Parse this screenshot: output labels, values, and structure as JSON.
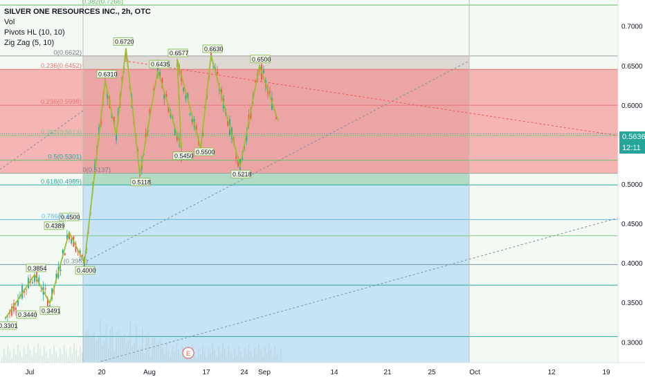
{
  "legend": {
    "title": "SILVER ONE RESOURCES INC., 2h, OTC",
    "indicators": [
      "Vol",
      "Pivots HL (10, 10)",
      "Zig Zag (5, 10)"
    ]
  },
  "price_label": {
    "value": "0.5636",
    "countdown": "12:11"
  },
  "event_marker": "E",
  "colors": {
    "zigzag": "#9bbf2b",
    "up_candle": "#26a69a",
    "down_candle": "#ef5350",
    "fib_red_zone": "#f77c80",
    "fib_blue_zone": "#90caf9",
    "fib_green_zone": "#c8e6c9",
    "current_price": "#26a69a"
  },
  "chart_data": {
    "type": "candlestick",
    "title": "SILVER ONE RESOURCES INC., 2h, OTC",
    "x_tick_labels": [
      "Jul",
      "20",
      "Aug",
      "17",
      "24",
      "Sep",
      "14",
      "21",
      "25",
      "Oct",
      "12",
      "19"
    ],
    "y_tick_labels": [
      "0.7000",
      "0.6500",
      "0.6000",
      "0.5500",
      "0.5000",
      "0.4500",
      "0.4000",
      "0.3500",
      "0.3000"
    ],
    "y_range": [
      0.274,
      0.733
    ],
    "current_price": 0.5636,
    "fib_retracement_upper": [
      {
        "label": "0(0.6622)",
        "value": 0.6622
      },
      {
        "label": "0.236(0.6452)",
        "value": 0.6452
      },
      {
        "label": "0.236(0.5998)",
        "value": 0.5998
      },
      {
        "label": "0.382(0.5613)",
        "value": 0.5613
      },
      {
        "label": "0.5(0.5301)",
        "value": 0.5301
      },
      {
        "label": "0(0.5137)",
        "value": 0.5137
      }
    ],
    "fib_retracement_lower": [
      {
        "label": "0.382(0.7266)",
        "value": 0.7266
      },
      {
        "label": "0.618(0.4989)",
        "value": 0.4989
      },
      {
        "label": "0.786(0.4",
        "value": 0.455
      },
      {
        "label": "(0.3981)",
        "value": 0.3981
      }
    ],
    "pivot_labels": [
      {
        "label": "0.3301",
        "value": 0.3301
      },
      {
        "label": "0.3440",
        "value": 0.344
      },
      {
        "label": "0.3854",
        "value": 0.3854
      },
      {
        "label": "0.3491",
        "value": 0.3491
      },
      {
        "label": "0.4389",
        "value": 0.4389
      },
      {
        "label": "0.4500",
        "value": 0.45
      },
      {
        "label": "0.4000",
        "value": 0.4
      },
      {
        "label": "0.6310",
        "value": 0.631
      },
      {
        "label": "0.6720",
        "value": 0.672
      },
      {
        "label": "0.5118",
        "value": 0.5118
      },
      {
        "label": "0.6435",
        "value": 0.6435
      },
      {
        "label": "0.6577",
        "value": 0.6577
      },
      {
        "label": "0.5450",
        "value": 0.545
      },
      {
        "label": "0.6630",
        "value": 0.663
      },
      {
        "label": "0.5500",
        "value": 0.55
      },
      {
        "label": "0.5218",
        "value": 0.5218
      },
      {
        "label": "0.6500",
        "value": 0.65
      }
    ],
    "zigzag_values": [
      0.3301,
      0.3854,
      0.3491,
      0.4389,
      0.4,
      0.631,
      0.562,
      0.672,
      0.5118,
      0.6435,
      0.545,
      0.6577,
      0.545,
      0.663,
      0.5218,
      0.65,
      0.58
    ],
    "grid": false,
    "legend": "top-left"
  }
}
